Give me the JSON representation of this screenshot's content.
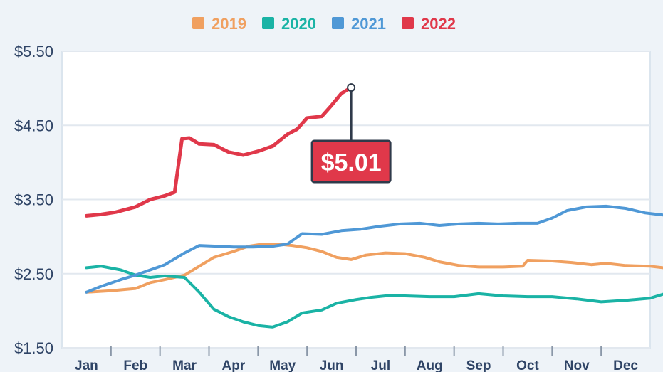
{
  "chart_data": {
    "type": "line",
    "ylim": [
      1.5,
      5.5
    ],
    "y_ticks": [
      "$1.50",
      "$2.50",
      "$3.50",
      "$4.50",
      "$5.50"
    ],
    "y_tick_values": [
      1.5,
      2.5,
      3.5,
      4.5,
      5.5
    ],
    "categories": [
      "Jan",
      "Feb",
      "Mar",
      "Apr",
      "May",
      "Jun",
      "Jul",
      "Aug",
      "Sep",
      "Oct",
      "Nov",
      "Dec"
    ],
    "grid": true,
    "legend": "top-center",
    "series": [
      {
        "name": "2019",
        "color": "#f0a060",
        "x": [
          0,
          0.5,
          1,
          1.3,
          1.6,
          2,
          2.3,
          2.6,
          3,
          3.3,
          3.6,
          3.9,
          4.2,
          4.5,
          4.8,
          5.1,
          5.4,
          5.7,
          6.1,
          6.5,
          6.9,
          7.2,
          7.6,
          8,
          8.5,
          8.9,
          9,
          9.5,
          9.9,
          10.3,
          10.6,
          11,
          11.5,
          11.9
        ],
        "y": [
          2.25,
          2.27,
          2.3,
          2.38,
          2.42,
          2.48,
          2.6,
          2.72,
          2.8,
          2.87,
          2.9,
          2.9,
          2.88,
          2.85,
          2.8,
          2.72,
          2.69,
          2.75,
          2.78,
          2.77,
          2.72,
          2.66,
          2.61,
          2.59,
          2.59,
          2.6,
          2.68,
          2.67,
          2.65,
          2.62,
          2.64,
          2.61,
          2.6,
          2.57
        ]
      },
      {
        "name": "2020",
        "color": "#1ab3a5",
        "x": [
          0,
          0.3,
          0.7,
          1,
          1.3,
          1.6,
          2,
          2.3,
          2.6,
          2.9,
          3.2,
          3.5,
          3.8,
          4.1,
          4.4,
          4.8,
          5.1,
          5.5,
          5.8,
          6.1,
          6.5,
          7,
          7.5,
          8,
          8.5,
          9,
          9.5,
          10,
          10.5,
          11,
          11.5,
          11.9
        ],
        "y": [
          2.58,
          2.6,
          2.55,
          2.48,
          2.45,
          2.47,
          2.45,
          2.25,
          2.02,
          1.92,
          1.85,
          1.8,
          1.78,
          1.85,
          1.97,
          2.01,
          2.1,
          2.15,
          2.18,
          2.2,
          2.2,
          2.19,
          2.19,
          2.23,
          2.2,
          2.19,
          2.19,
          2.16,
          2.12,
          2.14,
          2.17,
          2.25
        ]
      },
      {
        "name": "2021",
        "color": "#4f98d6",
        "x": [
          0,
          0.3,
          0.7,
          1,
          1.3,
          1.6,
          2,
          2.3,
          2.7,
          3,
          3.4,
          3.8,
          4.1,
          4.4,
          4.8,
          5.2,
          5.6,
          6,
          6.4,
          6.8,
          7.2,
          7.6,
          8,
          8.4,
          8.8,
          9.2,
          9.5,
          9.8,
          10.2,
          10.6,
          11,
          11.4,
          11.9
        ],
        "y": [
          2.25,
          2.33,
          2.42,
          2.48,
          2.55,
          2.62,
          2.78,
          2.88,
          2.87,
          2.86,
          2.86,
          2.87,
          2.9,
          3.04,
          3.03,
          3.08,
          3.1,
          3.14,
          3.17,
          3.18,
          3.15,
          3.17,
          3.18,
          3.17,
          3.18,
          3.18,
          3.25,
          3.35,
          3.4,
          3.41,
          3.38,
          3.32,
          3.28
        ]
      },
      {
        "name": "2022",
        "color": "#e0384a",
        "x": [
          0,
          0.3,
          0.6,
          1,
          1.3,
          1.6,
          1.8,
          1.95,
          2.1,
          2.3,
          2.6,
          2.9,
          3.2,
          3.5,
          3.8,
          4.1,
          4.3,
          4.5,
          4.8,
          5.0,
          5.2,
          5.4
        ],
        "y": [
          3.28,
          3.3,
          3.33,
          3.4,
          3.5,
          3.55,
          3.6,
          4.32,
          4.33,
          4.25,
          4.24,
          4.14,
          4.1,
          4.15,
          4.22,
          4.38,
          4.45,
          4.6,
          4.62,
          4.77,
          4.93,
          5.01
        ]
      }
    ],
    "annotation": {
      "label": "$5.01",
      "series": "2022"
    }
  }
}
